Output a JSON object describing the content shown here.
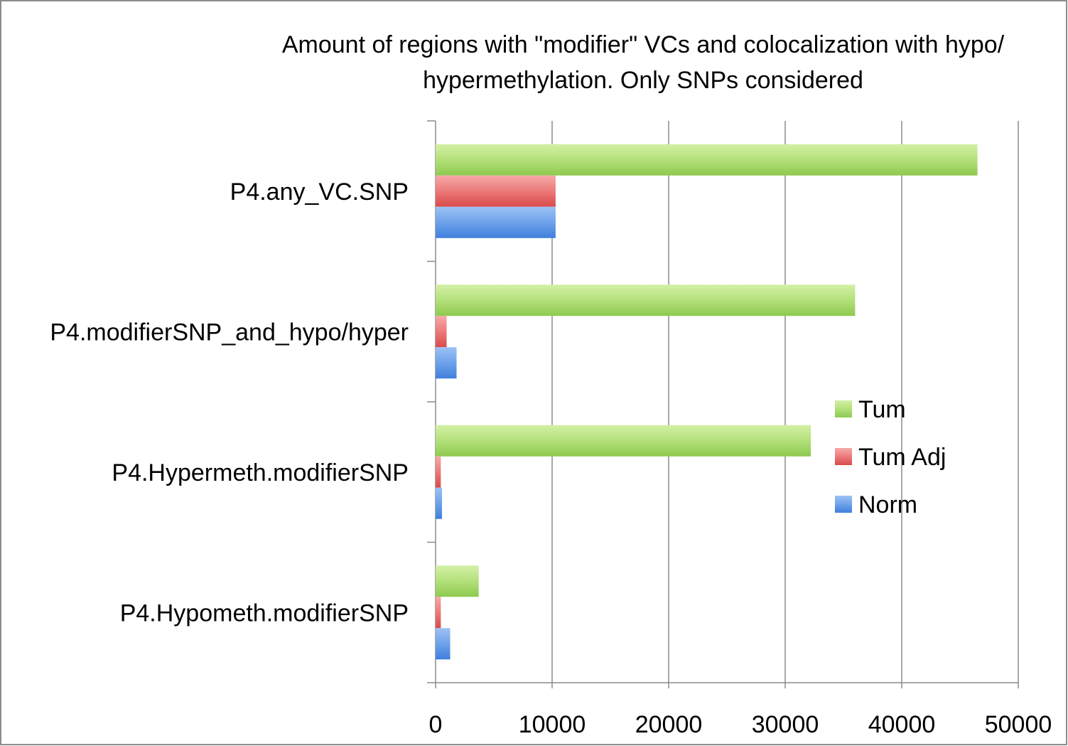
{
  "chart_data": {
    "type": "bar",
    "orientation": "horizontal",
    "title_lines": [
      "Amount of regions with \"modifier\" VCs and colocalization with hypo/",
      "hypermethylation. Only SNPs considered"
    ],
    "categories": [
      "P4.any_VC.SNP",
      "P4.modifierSNP_and_hypo/hyper",
      "P4.Hypermeth.modifierSNP",
      "P4.Hypometh.modifierSNP"
    ],
    "series": [
      {
        "name": "Tum",
        "values": [
          46500,
          36000,
          32200,
          3700
        ],
        "color": "#a6d86a"
      },
      {
        "name": "Tum Adj",
        "values": [
          10300,
          950,
          450,
          450
        ],
        "color": "#e86a6a"
      },
      {
        "name": "Norm",
        "values": [
          10300,
          1800,
          550,
          1250
        ],
        "color": "#5b95e6"
      }
    ],
    "xlim": [
      0,
      50000
    ],
    "xticks": [
      "0",
      "10000",
      "20000",
      "30000",
      "40000",
      "50000"
    ],
    "grid": true,
    "legend": {
      "position": "right",
      "entries": [
        "Tum",
        "Tum Adj",
        "Norm"
      ]
    }
  }
}
